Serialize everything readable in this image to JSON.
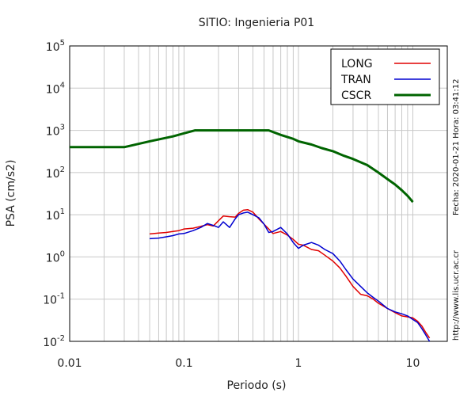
{
  "chart_data": {
    "type": "line",
    "title": "SITIO: Ingenieria P01",
    "xlabel": "Periodo (s)",
    "ylabel": "PSA (cm/s2)",
    "xscale": "log",
    "yscale": "log",
    "xlim": [
      0.01,
      20
    ],
    "ylim": [
      0.01,
      100000
    ],
    "x_tick_labels": [
      "0.01",
      "0.1",
      "1",
      "10"
    ],
    "y_tick_labels": [
      {
        "base": "10",
        "exp": "-2"
      },
      {
        "base": "10",
        "exp": "-1"
      },
      {
        "base": "10",
        "exp": "0"
      },
      {
        "base": "10",
        "exp": "1"
      },
      {
        "base": "10",
        "exp": "2"
      },
      {
        "base": "10",
        "exp": "3"
      },
      {
        "base": "10",
        "exp": "4"
      },
      {
        "base": "10",
        "exp": "5"
      }
    ],
    "grid": true,
    "legend_position": "top-right",
    "series": [
      {
        "name": "LONG",
        "color": "#e00000",
        "x": [
          0.05,
          0.06,
          0.07,
          0.08,
          0.09,
          0.1,
          0.12,
          0.14,
          0.16,
          0.18,
          0.2,
          0.22,
          0.25,
          0.28,
          0.3,
          0.33,
          0.36,
          0.4,
          0.45,
          0.5,
          0.55,
          0.6,
          0.7,
          0.8,
          0.9,
          1.0,
          1.1,
          1.3,
          1.5,
          1.7,
          2.0,
          2.3,
          2.6,
          3.0,
          3.5,
          4.0,
          4.5,
          5.0,
          6.0,
          7.0,
          8.0,
          9.0,
          10.0,
          11.0,
          12.0,
          13.0,
          14.0
        ],
        "y": [
          3.5,
          3.7,
          3.8,
          4.0,
          4.2,
          4.6,
          4.8,
          5.3,
          5.8,
          5.4,
          7.2,
          9.3,
          9.0,
          8.8,
          10.8,
          12.8,
          13.2,
          11.5,
          8.0,
          6.0,
          4.6,
          3.6,
          4.0,
          3.3,
          2.6,
          2.0,
          1.9,
          1.5,
          1.4,
          1.1,
          0.8,
          0.55,
          0.35,
          0.2,
          0.13,
          0.12,
          0.1,
          0.08,
          0.06,
          0.048,
          0.04,
          0.038,
          0.036,
          0.03,
          0.023,
          0.016,
          0.012
        ]
      },
      {
        "name": "TRAN",
        "color": "#0000d0",
        "x": [
          0.05,
          0.06,
          0.07,
          0.08,
          0.09,
          0.1,
          0.12,
          0.14,
          0.16,
          0.18,
          0.2,
          0.22,
          0.25,
          0.28,
          0.3,
          0.33,
          0.36,
          0.4,
          0.45,
          0.5,
          0.55,
          0.6,
          0.7,
          0.8,
          0.9,
          1.0,
          1.1,
          1.3,
          1.5,
          1.7,
          2.0,
          2.3,
          2.6,
          3.0,
          3.5,
          4.0,
          4.5,
          5.0,
          6.0,
          7.0,
          8.0,
          9.0,
          10.0,
          11.0,
          12.0,
          13.0,
          14.0
        ],
        "y": [
          2.7,
          2.8,
          3.0,
          3.2,
          3.5,
          3.6,
          4.2,
          5.0,
          6.2,
          5.6,
          5.0,
          6.8,
          5.0,
          8.0,
          10.0,
          11.0,
          11.5,
          10.0,
          8.5,
          6.0,
          3.8,
          4.0,
          5.0,
          3.5,
          2.2,
          1.6,
          1.9,
          2.2,
          1.9,
          1.5,
          1.2,
          0.8,
          0.5,
          0.3,
          0.2,
          0.14,
          0.11,
          0.09,
          0.06,
          0.05,
          0.045,
          0.04,
          0.033,
          0.028,
          0.02,
          0.014,
          0.01
        ]
      },
      {
        "name": "CSCR",
        "color": "#006400",
        "x": [
          0.01,
          0.03,
          0.05,
          0.08,
          0.1,
          0.125,
          0.2,
          0.3,
          0.4,
          0.55,
          0.7,
          0.9,
          1.0,
          1.3,
          1.6,
          2.0,
          2.5,
          3.0,
          4.0,
          5.0,
          6.0,
          7.0,
          8.0,
          9.0,
          10.0
        ],
        "y": [
          400,
          400,
          550,
          720,
          850,
          1000,
          1000,
          1000,
          1000,
          1000,
          780,
          630,
          550,
          460,
          380,
          320,
          250,
          210,
          150,
          100,
          70,
          52,
          38,
          28,
          20
        ]
      }
    ]
  },
  "side_text": {
    "fecha": "Fecha: 2020-01-21  Hora: 03:41:12",
    "url": "http://www.lis.ucr.ac.cr"
  }
}
